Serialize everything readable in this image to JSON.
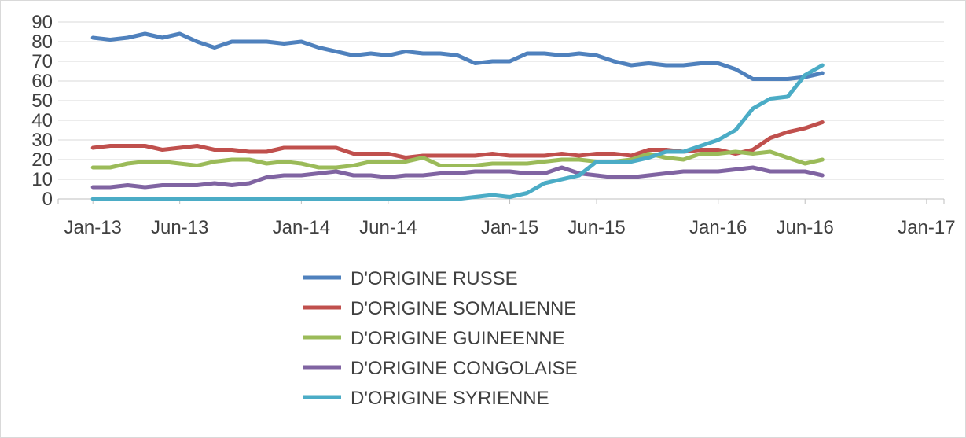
{
  "chart_data": {
    "type": "line",
    "title": "",
    "xlabel": "",
    "ylabel": "",
    "ylim": [
      0,
      90
    ],
    "yticks": [
      0,
      10,
      20,
      30,
      40,
      50,
      60,
      70,
      80,
      90
    ],
    "xlim": [
      "2012-11",
      "2017-02"
    ],
    "xtick_labels": [
      "Jan-13",
      "Jun-13",
      "Jan-14",
      "Jun-14",
      "Jan-15",
      "Jun-15",
      "Jan-16",
      "Jun-16",
      "Jan-17"
    ],
    "xtick_dates": [
      "2013-01",
      "2013-06",
      "2014-01",
      "2014-06",
      "2015-01",
      "2015-06",
      "2016-01",
      "2016-06",
      "2017-01"
    ],
    "grid": true,
    "legend_position": "bottom",
    "x": [
      "2013-01",
      "2013-02",
      "2013-03",
      "2013-04",
      "2013-05",
      "2013-06",
      "2013-07",
      "2013-08",
      "2013-09",
      "2013-10",
      "2013-11",
      "2013-12",
      "2014-01",
      "2014-02",
      "2014-03",
      "2014-04",
      "2014-05",
      "2014-06",
      "2014-07",
      "2014-08",
      "2014-09",
      "2014-10",
      "2014-11",
      "2014-12",
      "2015-01",
      "2015-02",
      "2015-03",
      "2015-04",
      "2015-05",
      "2015-06",
      "2015-07",
      "2015-08",
      "2015-09",
      "2015-10",
      "2015-11",
      "2015-12",
      "2016-01",
      "2016-02",
      "2016-03",
      "2016-04",
      "2016-05",
      "2016-06",
      "2016-07",
      "2016-08",
      "2016-09"
    ],
    "series": [
      {
        "name": "D'ORIGINE RUSSE",
        "color": "#4f81bd",
        "values": [
          82,
          81,
          82,
          84,
          82,
          84,
          80,
          77,
          80,
          80,
          80,
          79,
          80,
          77,
          75,
          73,
          74,
          73,
          75,
          74,
          74,
          73,
          69,
          70,
          70,
          74,
          74,
          73,
          74,
          73,
          70,
          68,
          69,
          68,
          68,
          69,
          69,
          66,
          61,
          61,
          61,
          62,
          64,
          null,
          null
        ]
      },
      {
        "name": "D'ORIGINE SOMALIENNE",
        "color": "#c0504d",
        "values": [
          26,
          27,
          27,
          27,
          25,
          26,
          27,
          25,
          25,
          24,
          24,
          26,
          26,
          26,
          26,
          23,
          23,
          23,
          21,
          22,
          22,
          22,
          22,
          23,
          22,
          22,
          22,
          23,
          22,
          23,
          23,
          22,
          25,
          25,
          24,
          25,
          25,
          23,
          25,
          31,
          34,
          36,
          39,
          null,
          null
        ]
      },
      {
        "name": "D'ORIGINE GUINEENNE",
        "color": "#9bbb59",
        "values": [
          16,
          16,
          18,
          19,
          19,
          18,
          17,
          19,
          20,
          20,
          18,
          19,
          18,
          16,
          16,
          17,
          19,
          19,
          19,
          21,
          17,
          17,
          17,
          18,
          18,
          18,
          19,
          20,
          20,
          19,
          19,
          20,
          23,
          21,
          20,
          23,
          23,
          24,
          23,
          24,
          21,
          18,
          20,
          null,
          null
        ]
      },
      {
        "name": "D'ORIGINE CONGOLAISE",
        "color": "#8064a2",
        "values": [
          6,
          6,
          7,
          6,
          7,
          7,
          7,
          8,
          7,
          8,
          11,
          12,
          12,
          13,
          14,
          12,
          12,
          11,
          12,
          12,
          13,
          13,
          14,
          14,
          14,
          13,
          13,
          16,
          13,
          12,
          11,
          11,
          12,
          13,
          14,
          14,
          14,
          15,
          16,
          14,
          14,
          14,
          12,
          null,
          null
        ]
      },
      {
        "name": "D'ORIGINE SYRIENNE",
        "color": "#4bacc6",
        "values": [
          0,
          0,
          0,
          0,
          0,
          0,
          0,
          0,
          0,
          0,
          0,
          0,
          0,
          0,
          0,
          0,
          0,
          0,
          0,
          0,
          0,
          0,
          1,
          2,
          1,
          3,
          8,
          10,
          12,
          19,
          19,
          19,
          21,
          24,
          24,
          27,
          30,
          35,
          46,
          51,
          52,
          63,
          68,
          null,
          null
        ]
      }
    ]
  }
}
